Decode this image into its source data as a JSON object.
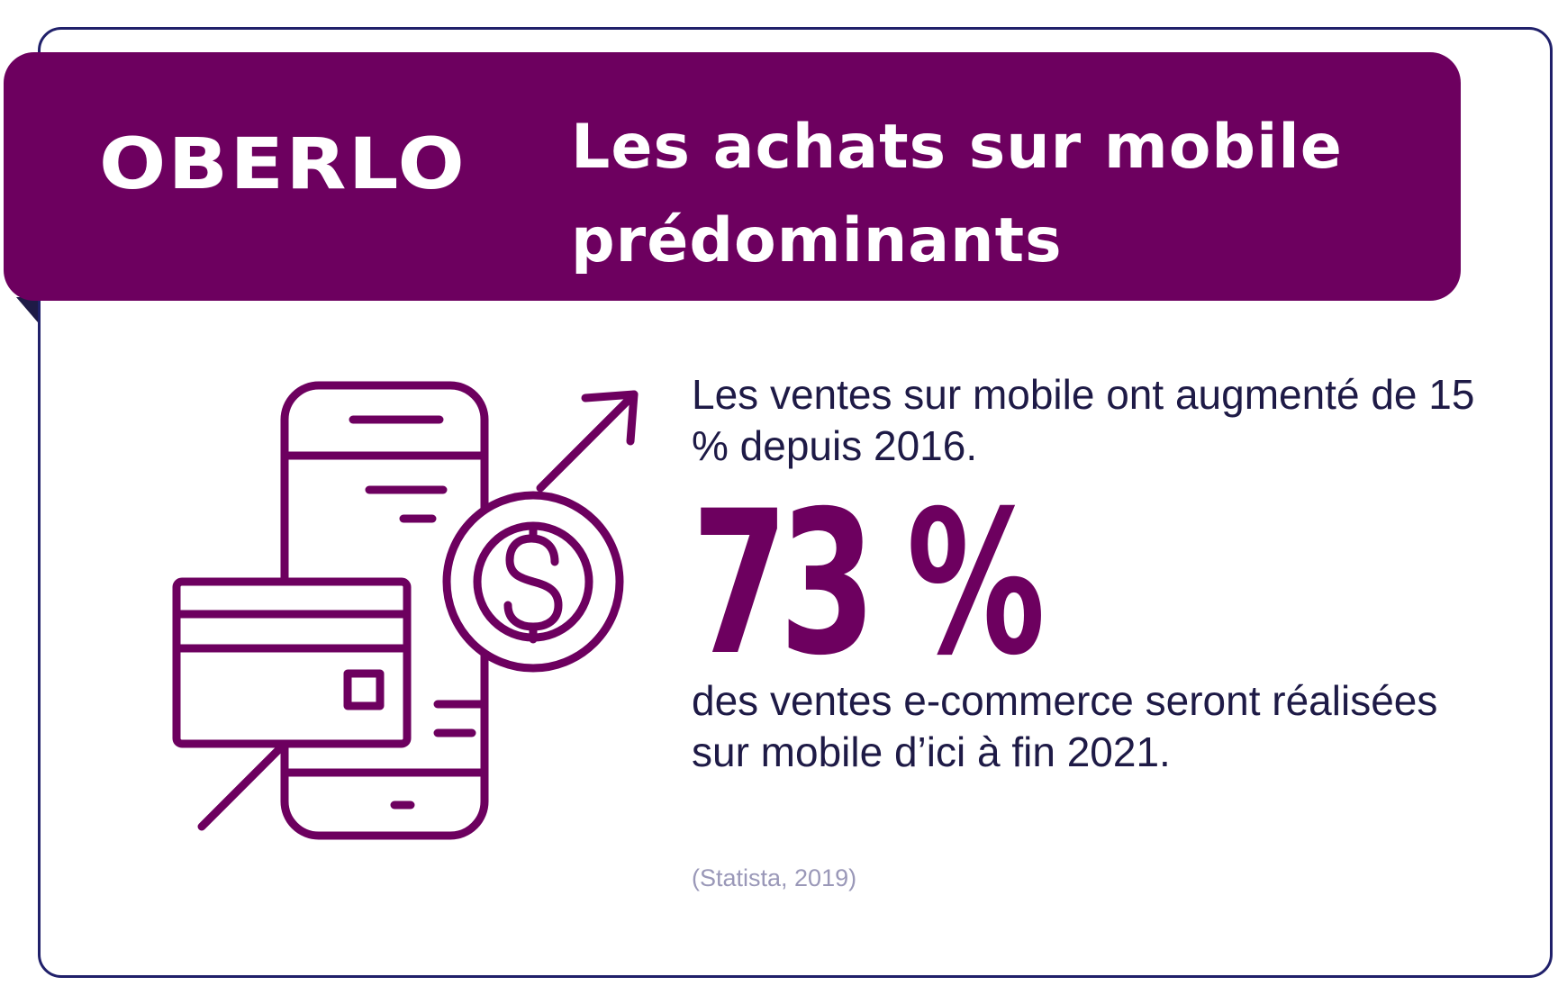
{
  "banner": {
    "logo": "OBERLO",
    "title": "Les achats sur mobile prédominants"
  },
  "stats": {
    "intro": "Les ventes sur mobile ont augmenté de 15 % depuis 2016.",
    "big_value": "73 %",
    "detail": "des ventes e-commerce seront réalisées sur mobile d’ici à fin 2021."
  },
  "source": "(Statista, 2019)",
  "illustration": {
    "icon_name": "mobile-payment-icon",
    "stroke_color": "#6d005f"
  },
  "colors": {
    "brand": "#6d005f",
    "text": "#1e1a46",
    "border": "#20206a",
    "source": "#9a98b8"
  }
}
